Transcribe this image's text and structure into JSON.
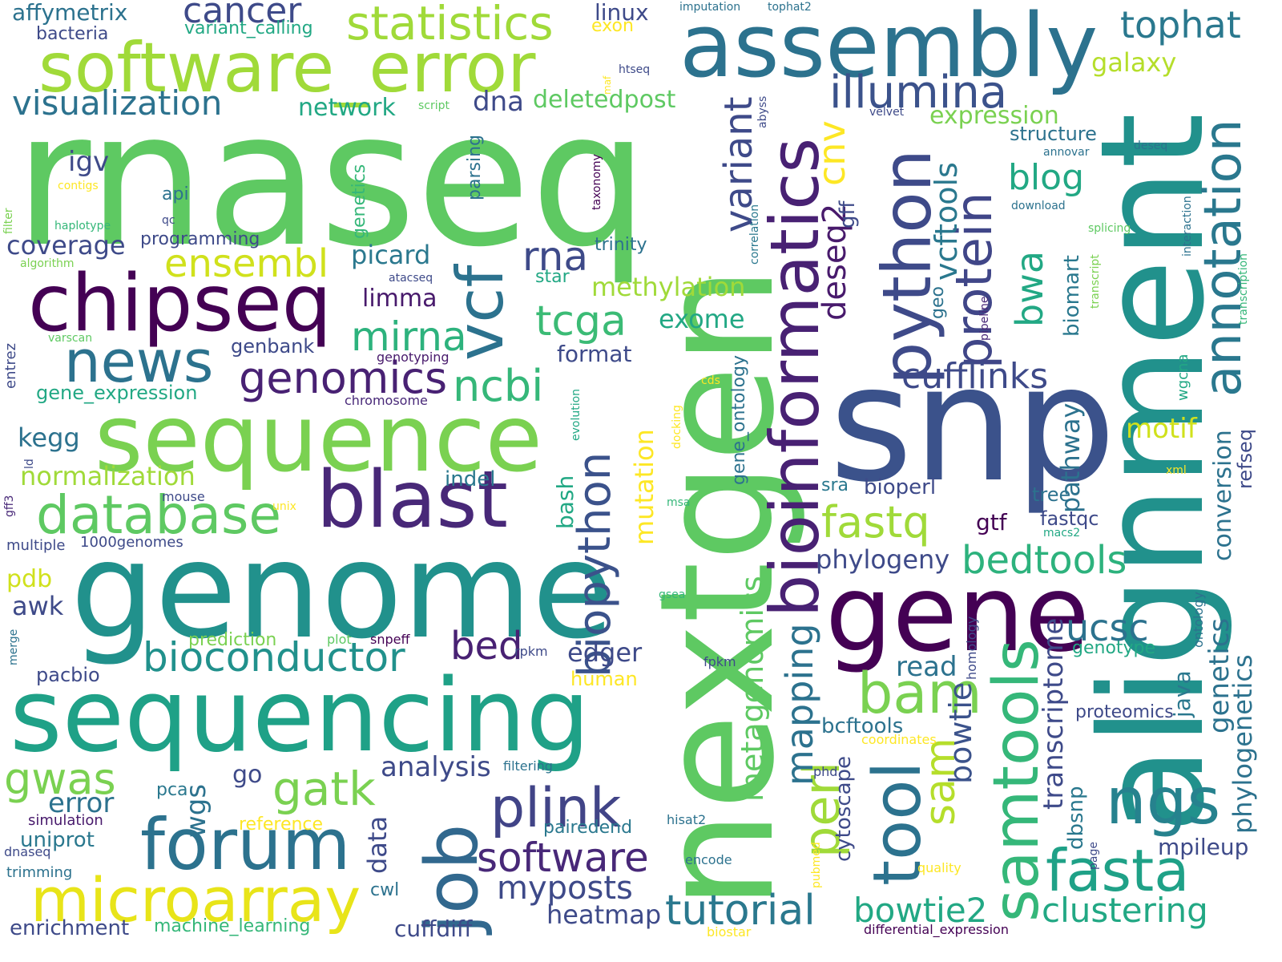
{
  "words": [
    {
      "text": "rnaseq",
      "color": "#5ec962",
      "rotate": false
    },
    {
      "text": "alignment",
      "color": "#21918c",
      "rotate": true
    },
    {
      "text": "snp",
      "color": "#3b528b",
      "rotate": false
    },
    {
      "text": "nextgen",
      "color": "#5ec962",
      "rotate": true
    },
    {
      "text": "genome",
      "color": "#21918c",
      "rotate": false
    },
    {
      "text": "sequencing",
      "color": "#1fa187",
      "rotate": false
    },
    {
      "text": "gene",
      "color": "#440154",
      "rotate": false
    },
    {
      "text": "assembly",
      "color": "#2c728e",
      "rotate": false
    },
    {
      "text": "sequence",
      "color": "#7ad151",
      "rotate": false
    },
    {
      "text": "software_error",
      "color": "#a0da39",
      "rotate": false
    },
    {
      "text": "blast",
      "color": "#482878",
      "rotate": false
    },
    {
      "text": "chipseq",
      "color": "#440154",
      "rotate": false
    },
    {
      "text": "bioinformatics",
      "color": "#482173",
      "rotate": true
    },
    {
      "text": "python",
      "color": "#3e4a89",
      "rotate": true
    },
    {
      "text": "job",
      "color": "#31688e",
      "rotate": true
    },
    {
      "text": "forum",
      "color": "#2c728e",
      "rotate": false
    },
    {
      "text": "microarray",
      "color": "#e8e419",
      "rotate": false
    },
    {
      "text": "samtools",
      "color": "#35b779",
      "rotate": true
    },
    {
      "text": "tool",
      "color": "#2c728e",
      "rotate": true
    },
    {
      "text": "vcf",
      "color": "#2c728e",
      "rotate": true
    },
    {
      "text": "annotation",
      "color": "#2a788e",
      "rotate": true
    },
    {
      "text": "ngs",
      "color": "#26828e",
      "rotate": false
    },
    {
      "text": "news",
      "color": "#2c728e",
      "rotate": false
    },
    {
      "text": "fasta",
      "color": "#1fa187",
      "rotate": false
    },
    {
      "text": "database",
      "color": "#5ec962",
      "rotate": false
    },
    {
      "text": "statistics",
      "color": "#a0da39",
      "rotate": false
    },
    {
      "text": "plink",
      "color": "#414487",
      "rotate": false
    },
    {
      "text": "bam",
      "color": "#7ad151",
      "rotate": false
    },
    {
      "text": "protein",
      "color": "#404688",
      "rotate": true
    },
    {
      "text": "illumina",
      "color": "#3b528b",
      "rotate": false
    },
    {
      "text": "bioconductor",
      "color": "#21918c",
      "rotate": false
    },
    {
      "text": "tutorial",
      "color": "#2a788e",
      "rotate": false
    },
    {
      "text": "gatk",
      "color": "#7ad151",
      "rotate": false
    },
    {
      "text": "software",
      "color": "#482878",
      "rotate": false
    },
    {
      "text": "biopython",
      "color": "#3b528b",
      "rotate": true
    },
    {
      "text": "perl",
      "color": "#a0da39",
      "rotate": true
    },
    {
      "text": "genomics",
      "color": "#482173",
      "rotate": false
    },
    {
      "text": "sam",
      "color": "#b5de2b",
      "rotate": true
    },
    {
      "text": "tophat",
      "color": "#2a788e",
      "rotate": false
    },
    {
      "text": "fastq",
      "color": "#a0da39",
      "rotate": false
    },
    {
      "text": "ensembl",
      "color": "#d0e11c",
      "rotate": false
    },
    {
      "text": "ncbi",
      "color": "#35b779",
      "rotate": false
    },
    {
      "text": "visualization",
      "color": "#2c728e",
      "rotate": false
    },
    {
      "text": "gwas",
      "color": "#7ad151",
      "rotate": false
    },
    {
      "text": "bedtools",
      "color": "#2db27d",
      "rotate": false
    },
    {
      "text": "clustering",
      "color": "#22a884",
      "rotate": false
    },
    {
      "text": "rna",
      "color": "#3e4a89",
      "rotate": false
    },
    {
      "text": "mirna",
      "color": "#2db27d",
      "rotate": false
    },
    {
      "text": "tcga",
      "color": "#3bbb75",
      "rotate": false
    },
    {
      "text": "mapping",
      "color": "#2c728e",
      "rotate": true
    },
    {
      "text": "myposts",
      "color": "#3e4a89",
      "rotate": false
    },
    {
      "text": "cufflinks",
      "color": "#3e4a89",
      "rotate": false
    },
    {
      "text": "bowtie2",
      "color": "#22a884",
      "rotate": false
    },
    {
      "text": "ucsc",
      "color": "#2c728e",
      "rotate": false
    },
    {
      "text": "variant",
      "color": "#3e4a89",
      "rotate": true
    },
    {
      "text": "cancer",
      "color": "#3e4a89",
      "rotate": false
    },
    {
      "text": "genetics",
      "color": "#2c728e",
      "rotate": true
    },
    {
      "text": "metagenomics",
      "color": "#5ec962",
      "rotate": true
    },
    {
      "text": "blog",
      "color": "#22a884",
      "rotate": false
    },
    {
      "text": "bed",
      "color": "#482173",
      "rotate": false
    },
    {
      "text": "cnv",
      "color": "#fde725",
      "rotate": true
    },
    {
      "text": "bwa",
      "color": "#22a884",
      "rotate": true
    },
    {
      "text": "deseq2",
      "color": "#481a6c",
      "rotate": true
    },
    {
      "text": "coverage",
      "color": "#3e4a89",
      "rotate": false
    },
    {
      "text": "transcriptome",
      "color": "#3e4a89",
      "rotate": true
    },
    {
      "text": "phylogeny",
      "color": "#3e4a89",
      "rotate": false
    },
    {
      "text": "bowtie",
      "color": "#3b528b",
      "rotate": true
    },
    {
      "text": "vcftools",
      "color": "#2a788e",
      "rotate": true
    },
    {
      "text": "phylogenetics",
      "color": "#2c728e",
      "rotate": true
    },
    {
      "text": "error",
      "color": "#2c728e",
      "rotate": false
    },
    {
      "text": "normalization",
      "color": "#a0da39",
      "rotate": false
    },
    {
      "text": "methylation",
      "color": "#a0da39",
      "rotate": false
    },
    {
      "text": "heatmap",
      "color": "#3e4a89",
      "rotate": false
    },
    {
      "text": "mutation",
      "color": "#fde725",
      "rotate": true
    },
    {
      "text": "read",
      "color": "#2c728e",
      "rotate": false
    },
    {
      "text": "analysis",
      "color": "#3e4a89",
      "rotate": false
    },
    {
      "text": "conversion",
      "color": "#2c728e",
      "rotate": true
    },
    {
      "text": "kegg",
      "color": "#2c728e",
      "rotate": false
    },
    {
      "text": "limma",
      "color": "#481a6c",
      "rotate": false
    },
    {
      "text": "igv",
      "color": "#3e4a89",
      "rotate": false
    },
    {
      "text": "wgs",
      "color": "#2c728e",
      "rotate": true
    },
    {
      "text": "picard",
      "color": "#2a788e",
      "rotate": false
    },
    {
      "text": "motif",
      "color": "#d0e11c",
      "rotate": false
    },
    {
      "text": "galaxy",
      "color": "#b5de2b",
      "rotate": false
    },
    {
      "text": "expression",
      "color": "#7ad151",
      "rotate": false
    },
    {
      "text": "edger",
      "color": "#3e4a89",
      "rotate": false
    },
    {
      "text": "exome",
      "color": "#22a884",
      "rotate": false
    },
    {
      "text": "pathway",
      "color": "#2c728e",
      "rotate": true
    },
    {
      "text": "data",
      "color": "#3e4a89",
      "rotate": true
    },
    {
      "text": "mpileup",
      "color": "#3e4a89",
      "rotate": false
    },
    {
      "text": "awk",
      "color": "#3e4a89",
      "rotate": false
    },
    {
      "text": "pdb",
      "color": "#d0e11c",
      "rotate": false
    },
    {
      "text": "uniprot",
      "color": "#2a788e",
      "rotate": false
    },
    {
      "text": "biomart",
      "color": "#2a788e",
      "rotate": true
    },
    {
      "text": "bcftools",
      "color": "#2c728e",
      "rotate": false
    },
    {
      "text": "enrichment",
      "color": "#3e4a89",
      "rotate": false
    },
    {
      "text": "cuffdiff",
      "color": "#3e4a89",
      "rotate": false
    },
    {
      "text": "affymetrix",
      "color": "#2c728e",
      "rotate": false
    },
    {
      "text": "linux",
      "color": "#3e4a89",
      "rotate": false
    },
    {
      "text": "structure",
      "color": "#2c728e",
      "rotate": false
    },
    {
      "text": "cytoscape",
      "color": "#3e4a89",
      "rotate": true
    },
    {
      "text": "deletedpost",
      "color": "#5ec962",
      "rotate": false
    },
    {
      "text": "network",
      "color": "#22a884",
      "rotate": false
    },
    {
      "text": "dna",
      "color": "#3e4a89",
      "rotate": false
    },
    {
      "text": "dbsnp",
      "color": "#2a788e",
      "rotate": true
    },
    {
      "text": "java",
      "color": "#2a788e",
      "rotate": true
    },
    {
      "text": "bash",
      "color": "#22a884",
      "rotate": true
    },
    {
      "text": "format",
      "color": "#3e4a89",
      "rotate": false
    },
    {
      "text": "gff",
      "color": "#3e4a89",
      "rotate": true
    },
    {
      "text": "gtf",
      "color": "#440154",
      "rotate": false
    },
    {
      "text": "bioperl",
      "color": "#3e4a89",
      "rotate": false
    },
    {
      "text": "indel",
      "color": "#2a788e",
      "rotate": false
    },
    {
      "text": "go",
      "color": "#3e4a89",
      "rotate": false
    },
    {
      "text": "gene_expression",
      "color": "#22a884",
      "rotate": false
    },
    {
      "text": "genbank",
      "color": "#3e4a89",
      "rotate": false
    },
    {
      "text": "fastqc",
      "color": "#3e4a89",
      "rotate": false
    },
    {
      "text": "refseq",
      "color": "#3e4a89",
      "rotate": true
    },
    {
      "text": "tree",
      "color": "#2c728e",
      "rotate": false
    },
    {
      "text": "geo",
      "color": "#2c728e",
      "rotate": true
    },
    {
      "text": "sra",
      "color": "#2a788e",
      "rotate": false
    },
    {
      "text": "variant_calling",
      "color": "#22a884",
      "rotate": false
    },
    {
      "text": "trinity",
      "color": "#2c728e",
      "rotate": false
    },
    {
      "text": "star",
      "color": "#22a884",
      "rotate": false
    },
    {
      "text": "pacbio",
      "color": "#3e4a89",
      "rotate": false
    },
    {
      "text": "proteomics",
      "color": "#3e4a89",
      "rotate": false
    },
    {
      "text": "genotype",
      "color": "#22a884",
      "rotate": false
    },
    {
      "text": "pairedend",
      "color": "#2a788e",
      "rotate": false
    },
    {
      "text": "human",
      "color": "#fde725",
      "rotate": false
    },
    {
      "text": "bacteria",
      "color": "#3e4a89",
      "rotate": false
    },
    {
      "text": "programming",
      "color": "#3e4a89",
      "rotate": false
    },
    {
      "text": "prediction",
      "color": "#7ad151",
      "rotate": false
    },
    {
      "text": "exon",
      "color": "#fde725",
      "rotate": false
    },
    {
      "text": "api",
      "color": "#2c728e",
      "rotate": false
    },
    {
      "text": "parsing",
      "color": "#2c728e",
      "rotate": true
    },
    {
      "text": "genetics",
      "color": "#35b779",
      "rotate": true
    },
    {
      "text": "cwl",
      "color": "#2c728e",
      "rotate": false
    },
    {
      "text": "pca",
      "color": "#2a788e",
      "rotate": false
    },
    {
      "text": "gene_ontology",
      "color": "#2c728e",
      "rotate": true
    },
    {
      "text": "machine_learning",
      "color": "#35b779",
      "rotate": false
    },
    {
      "text": "simulation",
      "color": "#481a6c",
      "rotate": false
    },
    {
      "text": "reference",
      "color": "#fde725",
      "rotate": false
    },
    {
      "text": "trimming",
      "color": "#2c728e",
      "rotate": false
    },
    {
      "text": "entrez",
      "color": "#3e4a89",
      "rotate": true
    },
    {
      "text": "wgcna",
      "color": "#22a884",
      "rotate": true
    },
    {
      "text": "multiple",
      "color": "#3e4a89",
      "rotate": false
    },
    {
      "text": "1000genomes",
      "color": "#3e4a89",
      "rotate": false
    },
    {
      "text": "mouse",
      "color": "#3e4a89",
      "rotate": false
    },
    {
      "text": "snpeff",
      "color": "#440154",
      "rotate": false
    },
    {
      "text": "rpkm",
      "color": "#3e4a89",
      "rotate": false
    },
    {
      "text": "fpkm",
      "color": "#3e4a89",
      "rotate": false
    },
    {
      "text": "homology",
      "color": "#3e4a89",
      "rotate": true
    },
    {
      "text": "ontology",
      "color": "#2c728e",
      "rotate": true
    },
    {
      "text": "genotyping",
      "color": "#481a6c",
      "rotate": false
    },
    {
      "text": "chromosome",
      "color": "#482878",
      "rotate": false
    },
    {
      "text": "coordinates",
      "color": "#fde725",
      "rotate": false
    },
    {
      "text": "phd",
      "color": "#3e4a89",
      "rotate": false
    },
    {
      "text": "filtering",
      "color": "#2c728e",
      "rotate": false
    },
    {
      "text": "hisat2",
      "color": "#2c728e",
      "rotate": false
    },
    {
      "text": "encode",
      "color": "#2c728e",
      "rotate": false
    },
    {
      "text": "quality",
      "color": "#fde725",
      "rotate": false
    },
    {
      "text": "pubmed",
      "color": "#fde725",
      "rotate": true
    },
    {
      "text": "page",
      "color": "#3e4a89",
      "rotate": true
    },
    {
      "text": "biostar",
      "color": "#fde725",
      "rotate": false
    },
    {
      "text": "differential_expression",
      "color": "#440154",
      "rotate": false
    },
    {
      "text": "dnaseq",
      "color": "#3e4a89",
      "rotate": false
    },
    {
      "text": "merge",
      "color": "#2c728e",
      "rotate": true
    },
    {
      "text": "plot",
      "color": "#5ec962",
      "rotate": false
    },
    {
      "text": "gsea",
      "color": "#35b779",
      "rotate": false
    },
    {
      "text": "msa",
      "color": "#35b779",
      "rotate": false
    },
    {
      "text": "unix",
      "color": "#fde725",
      "rotate": false
    },
    {
      "text": "gff3",
      "color": "#482878",
      "rotate": true
    },
    {
      "text": "ld",
      "color": "#3e4a89",
      "rotate": true
    },
    {
      "text": "docking",
      "color": "#fde725",
      "rotate": true
    },
    {
      "text": "evolution",
      "color": "#22a884",
      "rotate": true
    },
    {
      "text": "cds",
      "color": "#fde725",
      "rotate": false
    },
    {
      "text": "xml",
      "color": "#fde725",
      "rotate": false
    },
    {
      "text": "macs2",
      "color": "#22a884",
      "rotate": false
    },
    {
      "text": "atacseq",
      "color": "#3e4a89",
      "rotate": false
    },
    {
      "text": "varscan",
      "color": "#5ec962",
      "rotate": false
    },
    {
      "text": "algorithm",
      "color": "#7ad151",
      "rotate": false
    },
    {
      "text": "filter",
      "color": "#7ad151",
      "rotate": true
    },
    {
      "text": "contigs",
      "color": "#fde725",
      "rotate": false
    },
    {
      "text": "haplotype",
      "color": "#35b779",
      "rotate": false
    },
    {
      "text": "qc",
      "color": "#3e4a89",
      "rotate": false
    },
    {
      "text": "imputation",
      "color": "#2c728e",
      "rotate": false
    },
    {
      "text": "tophat2",
      "color": "#2c728e",
      "rotate": false
    },
    {
      "text": "htseq",
      "color": "#3e4a89",
      "rotate": false
    },
    {
      "text": "maf",
      "color": "#fde725",
      "rotate": true
    },
    {
      "text": "script",
      "color": "#5ec962",
      "rotate": false
    },
    {
      "text": "abyss",
      "color": "#3e4a89",
      "rotate": true
    },
    {
      "text": "velvet",
      "color": "#3e4a89",
      "rotate": false
    },
    {
      "text": "correlation",
      "color": "#2a788e",
      "rotate": true
    },
    {
      "text": "taxonomy",
      "color": "#440154",
      "rotate": true
    },
    {
      "text": "annovar",
      "color": "#2c728e",
      "rotate": false
    },
    {
      "text": "deseq",
      "color": "#2c728e",
      "rotate": false
    },
    {
      "text": "download",
      "color": "#2c728e",
      "rotate": false
    },
    {
      "text": "interaction",
      "color": "#2c728e",
      "rotate": true
    },
    {
      "text": "splicing",
      "color": "#5ec962",
      "rotate": false
    },
    {
      "text": "transcript",
      "color": "#7ad151",
      "rotate": true
    },
    {
      "text": "transcription",
      "color": "#35b779",
      "rotate": true
    },
    {
      "text": "pipeline",
      "color": "#482878",
      "rotate": true
    }
  ]
}
